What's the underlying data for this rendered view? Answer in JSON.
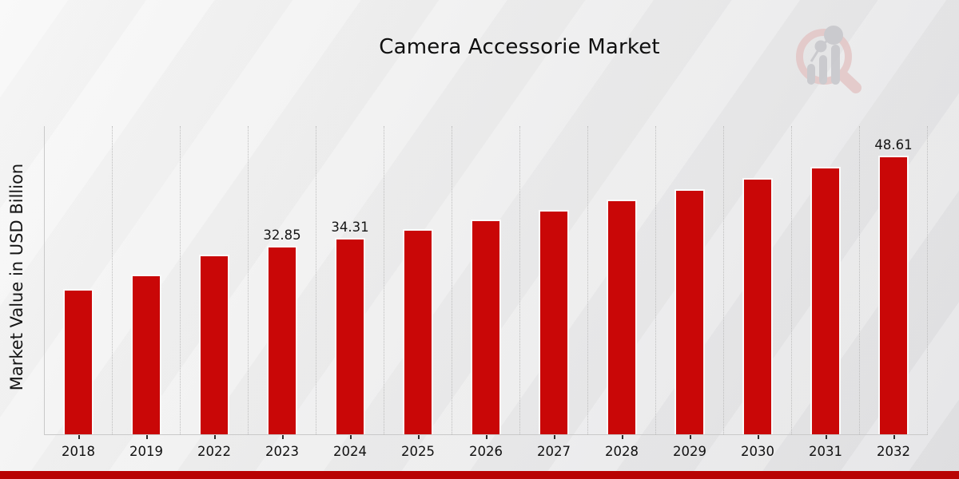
{
  "page": {
    "title": "Camera Accessorie Market",
    "watermark_icon": "magnifier-bar-chart-logo",
    "footer_accent_color": "#b80303",
    "background_base_color": "#e9e9ea"
  },
  "chart_data": {
    "type": "bar",
    "title": "Camera Accessorie Market",
    "xlabel": "",
    "ylabel": "Market Value in USD Billion",
    "categories": [
      "2018",
      "2019",
      "2022",
      "2023",
      "2024",
      "2025",
      "2026",
      "2027",
      "2028",
      "2029",
      "2030",
      "2031",
      "2032"
    ],
    "values": [
      25.3,
      27.8,
      31.4,
      32.85,
      34.31,
      35.8,
      37.4,
      39.2,
      40.9,
      42.8,
      44.7,
      46.6,
      48.61
    ],
    "bar_labels": [
      "",
      "",
      "",
      "32.85",
      "34.31",
      "",
      "",
      "",
      "",
      "",
      "",
      "",
      "48.61"
    ],
    "bar_color": "#c90707",
    "bar_edge_color": "#fafafa",
    "ylim": [
      0,
      53.9
    ],
    "grid": "vertical dotted separators between categories",
    "legend_position": "none"
  }
}
